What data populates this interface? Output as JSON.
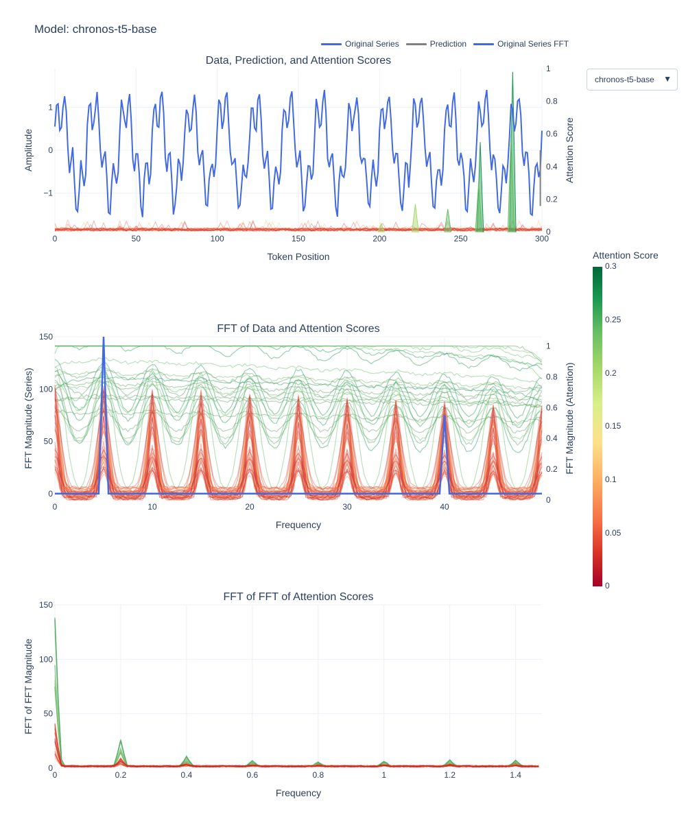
{
  "main_title": "Model: chronos-t5-base",
  "dropdown": {
    "selected": "chronos-t5-base"
  },
  "legend": [
    {
      "label": "Original Series",
      "color": "#4169e1"
    },
    {
      "label": "Prediction",
      "color": "#808080"
    },
    {
      "label": "Original Series FFT",
      "color": "#4169e1"
    }
  ],
  "colorbar": {
    "title": "Attention Score",
    "ticks": [
      "0.3",
      "0.25",
      "0.2",
      "0.15",
      "0.1",
      "0.05",
      "0"
    ],
    "colors": [
      "#a50026",
      "#d73027",
      "#f46d43",
      "#fdae61",
      "#fee08b",
      "#d9ef8b",
      "#a6d96a",
      "#66bd63",
      "#1a9850",
      "#006837"
    ]
  },
  "chart_data": [
    {
      "type": "line",
      "title": "Data, Prediction, and Attention Scores",
      "xlabel": "Token Position",
      "ylabel": "Amplitude",
      "y2label": "Attention Score",
      "xlim": [
        0,
        300
      ],
      "ylim": [
        -1.9,
        1.9
      ],
      "y2lim": [
        0,
        1
      ],
      "x_ticks": [
        "0",
        "50",
        "100",
        "150",
        "200",
        "250",
        "300"
      ],
      "y_ticks": [
        "−1",
        "0",
        "1"
      ],
      "y2_ticks": [
        "0",
        "0.2",
        "0.4",
        "0.6",
        "0.8",
        "1"
      ],
      "series": [
        {
          "name": "Original Series",
          "color": "#4169e1",
          "period": 20,
          "components": [
            {
              "freq": 0.05,
              "amp": 1.0
            },
            {
              "freq": 0.2,
              "amp": 0.5
            }
          ],
          "noise": 0.15
        }
      ],
      "attention_peaks": [
        {
          "x": 262,
          "value": 0.55,
          "color": "#1a9850"
        },
        {
          "x": 282,
          "value": 0.98,
          "color": "#1a9850"
        },
        {
          "x": 261,
          "value": 0.3,
          "color": "#66bd63"
        },
        {
          "x": 281,
          "value": 0.6,
          "color": "#66bd63"
        },
        {
          "x": 242,
          "value": 0.14,
          "color": "#66bd63"
        },
        {
          "x": 222,
          "value": 0.17,
          "color": "#a6d96a"
        },
        {
          "x": 201,
          "value": 0.05,
          "color": "#a6d96a"
        }
      ]
    },
    {
      "type": "line",
      "title": "FFT of Data and Attention Scores",
      "xlabel": "Frequency",
      "ylabel": "FFT Magnitude (Series)",
      "y2label": "FFT Magnitude (Attention)",
      "xlim": [
        0,
        50
      ],
      "ylim": [
        -6,
        150
      ],
      "y2lim": [
        0,
        1.06
      ],
      "x_ticks": [
        "0",
        "10",
        "20",
        "30",
        "40"
      ],
      "y_ticks": [
        "0",
        "50",
        "100",
        "150"
      ],
      "y2_ticks": [
        "0",
        "0.2",
        "0.4",
        "0.6",
        "0.8",
        "1"
      ],
      "series_fft": {
        "name": "Original Series FFT",
        "color": "#4169e1",
        "peaks": [
          {
            "x": 5,
            "value": 150
          },
          {
            "x": 40,
            "value": 75
          }
        ],
        "baseline": 0
      },
      "attention_harmonics": [
        0,
        5,
        10,
        15,
        20,
        25,
        30,
        35,
        40,
        45,
        50
      ]
    },
    {
      "type": "line",
      "title": "FFT of FFT of Attention Scores",
      "xlabel": "Frequency",
      "ylabel": "FFT of FFT Magnitude",
      "xlim": [
        0,
        1.48
      ],
      "ylim": [
        0,
        150
      ],
      "x_ticks": [
        "0",
        "0.2",
        "0.4",
        "0.6",
        "0.8",
        "1",
        "1.2",
        "1.4"
      ],
      "y_ticks": [
        "0",
        "50",
        "100",
        "150"
      ],
      "peaks": [
        {
          "x": 0,
          "value": 140
        },
        {
          "x": 0.2,
          "value": 25
        },
        {
          "x": 0.4,
          "value": 9
        },
        {
          "x": 0.6,
          "value": 5
        },
        {
          "x": 0.8,
          "value": 4
        },
        {
          "x": 1.0,
          "value": 5
        },
        {
          "x": 1.2,
          "value": 6
        },
        {
          "x": 1.4,
          "value": 6
        }
      ]
    }
  ]
}
